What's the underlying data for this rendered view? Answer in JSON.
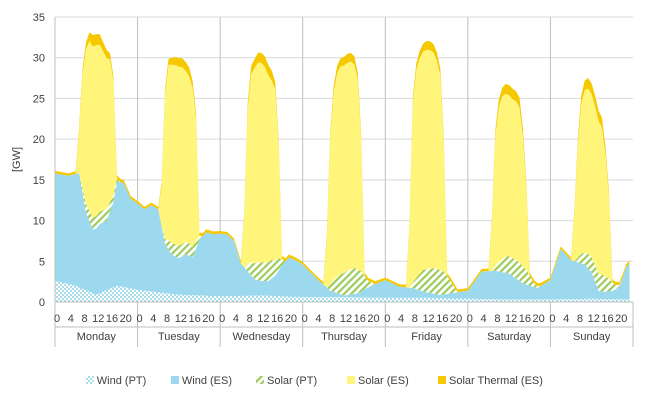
{
  "chart_data": {
    "type": "area",
    "stacked": true,
    "ylabel": "[GW]",
    "ylim": [
      0,
      35
    ],
    "yticks": [
      0,
      5,
      10,
      15,
      20,
      25,
      30,
      35
    ],
    "grid": "horizontal",
    "legend_position": "bottom",
    "days": [
      "Monday",
      "Tuesday",
      "Wednesday",
      "Thursday",
      "Friday",
      "Saturday",
      "Sunday"
    ],
    "hour_ticks": [
      "0",
      "4",
      "8",
      "12",
      "16",
      "20"
    ],
    "hours_per_day": 24,
    "series": [
      {
        "name": "Wind (PT)",
        "color": "#9FDCE8",
        "pattern": "dots",
        "points": [
          [
            0,
            2.6
          ],
          [
            6,
            2.0
          ],
          [
            12,
            0.9
          ],
          [
            18,
            2.0
          ],
          [
            24,
            1.5
          ],
          [
            36,
            0.9
          ],
          [
            48,
            0.7
          ],
          [
            60,
            0.8
          ],
          [
            72,
            0.6
          ],
          [
            84,
            0.6
          ],
          [
            96,
            0.5
          ],
          [
            108,
            0.5
          ],
          [
            120,
            0.4
          ],
          [
            132,
            0.3
          ],
          [
            144,
            0.3
          ],
          [
            156,
            0.4
          ],
          [
            167,
            0.3
          ]
        ]
      },
      {
        "name": "Wind (ES)",
        "color": "#9DD9EE",
        "pattern": "solid",
        "points": [
          [
            0,
            13.2
          ],
          [
            4,
            13.3
          ],
          [
            7,
            14.0
          ],
          [
            9,
            9.5
          ],
          [
            11,
            7.8
          ],
          [
            13,
            8.5
          ],
          [
            15,
            8.5
          ],
          [
            17,
            10.5
          ],
          [
            18,
            12.8
          ],
          [
            20,
            12.8
          ],
          [
            22,
            11.0
          ],
          [
            24,
            10.6
          ],
          [
            26,
            10.0
          ],
          [
            28,
            10.6
          ],
          [
            30,
            10.2
          ],
          [
            32,
            6.0
          ],
          [
            34,
            4.8
          ],
          [
            36,
            4.5
          ],
          [
            38,
            5.0
          ],
          [
            40,
            4.7
          ],
          [
            42,
            6.8
          ],
          [
            44,
            7.8
          ],
          [
            46,
            7.6
          ],
          [
            48,
            7.7
          ],
          [
            50,
            7.6
          ],
          [
            52,
            6.8
          ],
          [
            54,
            4.0
          ],
          [
            56,
            3.0
          ],
          [
            58,
            2.0
          ],
          [
            60,
            1.8
          ],
          [
            62,
            1.8
          ],
          [
            64,
            2.5
          ],
          [
            66,
            3.8
          ],
          [
            68,
            4.8
          ],
          [
            70,
            4.5
          ],
          [
            72,
            4.0
          ],
          [
            76,
            2.3
          ],
          [
            80,
            0.8
          ],
          [
            84,
            0.2
          ],
          [
            88,
            0.5
          ],
          [
            92,
            1.5
          ],
          [
            96,
            2.2
          ],
          [
            100,
            1.4
          ],
          [
            104,
            1.2
          ],
          [
            108,
            0.7
          ],
          [
            112,
            0.4
          ],
          [
            116,
            0.7
          ],
          [
            120,
            1.0
          ],
          [
            124,
            3.4
          ],
          [
            128,
            3.5
          ],
          [
            132,
            3.2
          ],
          [
            136,
            2.0
          ],
          [
            140,
            1.4
          ],
          [
            144,
            2.4
          ],
          [
            147,
            6.2
          ],
          [
            150,
            4.8
          ],
          [
            154,
            4.2
          ],
          [
            156,
            3.2
          ],
          [
            158,
            1.0
          ],
          [
            160,
            0.9
          ],
          [
            162,
            1.0
          ],
          [
            164,
            1.5
          ],
          [
            166,
            4.0
          ],
          [
            167,
            4.5
          ]
        ]
      },
      {
        "name": "Solar (PT)",
        "color": "#C8E69A",
        "pattern": "stripes",
        "points": [
          [
            0,
            0
          ],
          [
            7,
            0
          ],
          [
            9,
            1.1
          ],
          [
            11,
            1.5
          ],
          [
            13,
            1.5
          ],
          [
            15,
            1.5
          ],
          [
            17,
            0.8
          ],
          [
            19,
            0
          ],
          [
            31,
            0
          ],
          [
            33,
            1.2
          ],
          [
            35,
            1.5
          ],
          [
            37,
            1.5
          ],
          [
            39,
            1.5
          ],
          [
            41,
            1.0
          ],
          [
            43,
            0
          ],
          [
            55,
            0
          ],
          [
            57,
            1.7
          ],
          [
            59,
            2.2
          ],
          [
            61,
            2.3
          ],
          [
            63,
            2.3
          ],
          [
            65,
            1.5
          ],
          [
            67,
            0
          ],
          [
            79,
            0
          ],
          [
            81,
            1.5
          ],
          [
            83,
            2.5
          ],
          [
            85,
            3.0
          ],
          [
            87,
            3.2
          ],
          [
            89,
            2.5
          ],
          [
            91,
            0.8
          ],
          [
            93,
            0
          ],
          [
            103,
            0
          ],
          [
            105,
            1.4
          ],
          [
            107,
            2.6
          ],
          [
            109,
            3.0
          ],
          [
            111,
            3.2
          ],
          [
            113,
            2.8
          ],
          [
            115,
            1.5
          ],
          [
            117,
            0
          ],
          [
            127,
            0
          ],
          [
            129,
            1.2
          ],
          [
            131,
            2.0
          ],
          [
            133,
            2.2
          ],
          [
            135,
            2.3
          ],
          [
            137,
            1.8
          ],
          [
            139,
            0.6
          ],
          [
            141,
            0
          ],
          [
            151,
            0
          ],
          [
            153,
            1.2
          ],
          [
            155,
            1.8
          ],
          [
            157,
            2.0
          ],
          [
            159,
            2.1
          ],
          [
            161,
            1.6
          ],
          [
            163,
            0.5
          ],
          [
            165,
            0
          ],
          [
            167,
            0
          ]
        ]
      },
      {
        "name": "Solar (ES)",
        "color": "#FFF57A",
        "pattern": "solid",
        "points": [
          [
            0,
            0
          ],
          [
            6,
            0
          ],
          [
            7,
            5.0
          ],
          [
            8,
            14.0
          ],
          [
            9,
            19.0
          ],
          [
            10,
            20.8
          ],
          [
            11,
            21.0
          ],
          [
            12,
            21.0
          ],
          [
            13,
            20.5
          ],
          [
            14,
            19.5
          ],
          [
            15,
            18.5
          ],
          [
            16,
            17.5
          ],
          [
            17,
            14.0
          ],
          [
            18,
            0
          ],
          [
            30,
            0
          ],
          [
            31,
            5.0
          ],
          [
            32,
            18.0
          ],
          [
            33,
            21.5
          ],
          [
            34,
            22.0
          ],
          [
            35,
            22.0
          ],
          [
            36,
            22.0
          ],
          [
            37,
            21.7
          ],
          [
            38,
            21.0
          ],
          [
            39,
            20.5
          ],
          [
            40,
            19.5
          ],
          [
            41,
            15.0
          ],
          [
            42,
            0
          ],
          [
            54,
            0
          ],
          [
            55,
            6.0
          ],
          [
            56,
            19.0
          ],
          [
            57,
            23.0
          ],
          [
            58,
            24.0
          ],
          [
            59,
            24.5
          ],
          [
            60,
            24.5
          ],
          [
            61,
            24.0
          ],
          [
            62,
            23.0
          ],
          [
            63,
            22.0
          ],
          [
            64,
            21.0
          ],
          [
            65,
            14.0
          ],
          [
            66,
            0
          ],
          [
            78,
            0
          ],
          [
            79,
            6.0
          ],
          [
            80,
            18.0
          ],
          [
            81,
            23.0
          ],
          [
            82,
            25.0
          ],
          [
            83,
            25.5
          ],
          [
            84,
            25.5
          ],
          [
            85,
            25.5
          ],
          [
            86,
            25.5
          ],
          [
            87,
            25.0
          ],
          [
            88,
            23.5
          ],
          [
            89,
            16.0
          ],
          [
            90,
            0
          ],
          [
            102,
            0
          ],
          [
            103,
            7.0
          ],
          [
            104,
            22.0
          ],
          [
            105,
            25.5
          ],
          [
            106,
            26.5
          ],
          [
            107,
            26.8
          ],
          [
            108,
            27.0
          ],
          [
            109,
            26.8
          ],
          [
            110,
            26.5
          ],
          [
            111,
            25.5
          ],
          [
            112,
            24.0
          ],
          [
            113,
            16.0
          ],
          [
            114,
            0
          ],
          [
            126,
            0
          ],
          [
            127,
            6.0
          ],
          [
            128,
            16.0
          ],
          [
            129,
            19.0
          ],
          [
            130,
            20.0
          ],
          [
            131,
            20.0
          ],
          [
            132,
            19.8
          ],
          [
            133,
            19.5
          ],
          [
            134,
            19.5
          ],
          [
            135,
            19.0
          ],
          [
            136,
            16.0
          ],
          [
            137,
            10.0
          ],
          [
            138,
            0
          ],
          [
            150,
            0
          ],
          [
            151,
            6.0
          ],
          [
            152,
            14.0
          ],
          [
            153,
            18.5
          ],
          [
            154,
            20.0
          ],
          [
            155,
            20.3
          ],
          [
            156,
            20.0
          ],
          [
            157,
            19.5
          ],
          [
            158,
            18.8
          ],
          [
            159,
            18.0
          ],
          [
            160,
            15.0
          ],
          [
            161,
            10.0
          ],
          [
            162,
            0
          ],
          [
            167,
            0
          ]
        ]
      },
      {
        "name": "Solar Thermal (ES)",
        "color": "#F5C800",
        "pattern": "solid",
        "points": [
          [
            0,
            0.3
          ],
          [
            6,
            0.3
          ],
          [
            9,
            0.8
          ],
          [
            11,
            1.4
          ],
          [
            13,
            1.3
          ],
          [
            15,
            1.0
          ],
          [
            17,
            0.5
          ],
          [
            18,
            0.4
          ],
          [
            24,
            0.3
          ],
          [
            30,
            0.3
          ],
          [
            33,
            0.7
          ],
          [
            35,
            1.0
          ],
          [
            37,
            1.1
          ],
          [
            39,
            1.1
          ],
          [
            41,
            0.6
          ],
          [
            42,
            0.4
          ],
          [
            48,
            0.3
          ],
          [
            54,
            0.3
          ],
          [
            57,
            1.0
          ],
          [
            59,
            1.2
          ],
          [
            61,
            1.3
          ],
          [
            63,
            1.2
          ],
          [
            65,
            0.6
          ],
          [
            66,
            0.4
          ],
          [
            72,
            0.3
          ],
          [
            78,
            0.3
          ],
          [
            81,
            0.8
          ],
          [
            83,
            1.0
          ],
          [
            85,
            1.1
          ],
          [
            87,
            1.0
          ],
          [
            89,
            0.6
          ],
          [
            90,
            0.4
          ],
          [
            96,
            0.3
          ],
          [
            102,
            0.3
          ],
          [
            105,
            0.8
          ],
          [
            107,
            1.0
          ],
          [
            109,
            1.1
          ],
          [
            111,
            1.0
          ],
          [
            113,
            0.6
          ],
          [
            114,
            0.4
          ],
          [
            120,
            0.3
          ],
          [
            126,
            0.3
          ],
          [
            129,
            0.9
          ],
          [
            131,
            1.2
          ],
          [
            133,
            1.3
          ],
          [
            135,
            1.2
          ],
          [
            137,
            0.7
          ],
          [
            138,
            0.4
          ],
          [
            144,
            0.3
          ],
          [
            150,
            0.3
          ],
          [
            153,
            1.0
          ],
          [
            155,
            1.3
          ],
          [
            157,
            1.3
          ],
          [
            159,
            1.2
          ],
          [
            161,
            0.7
          ],
          [
            162,
            0.4
          ],
          [
            167,
            0.3
          ]
        ]
      }
    ]
  }
}
